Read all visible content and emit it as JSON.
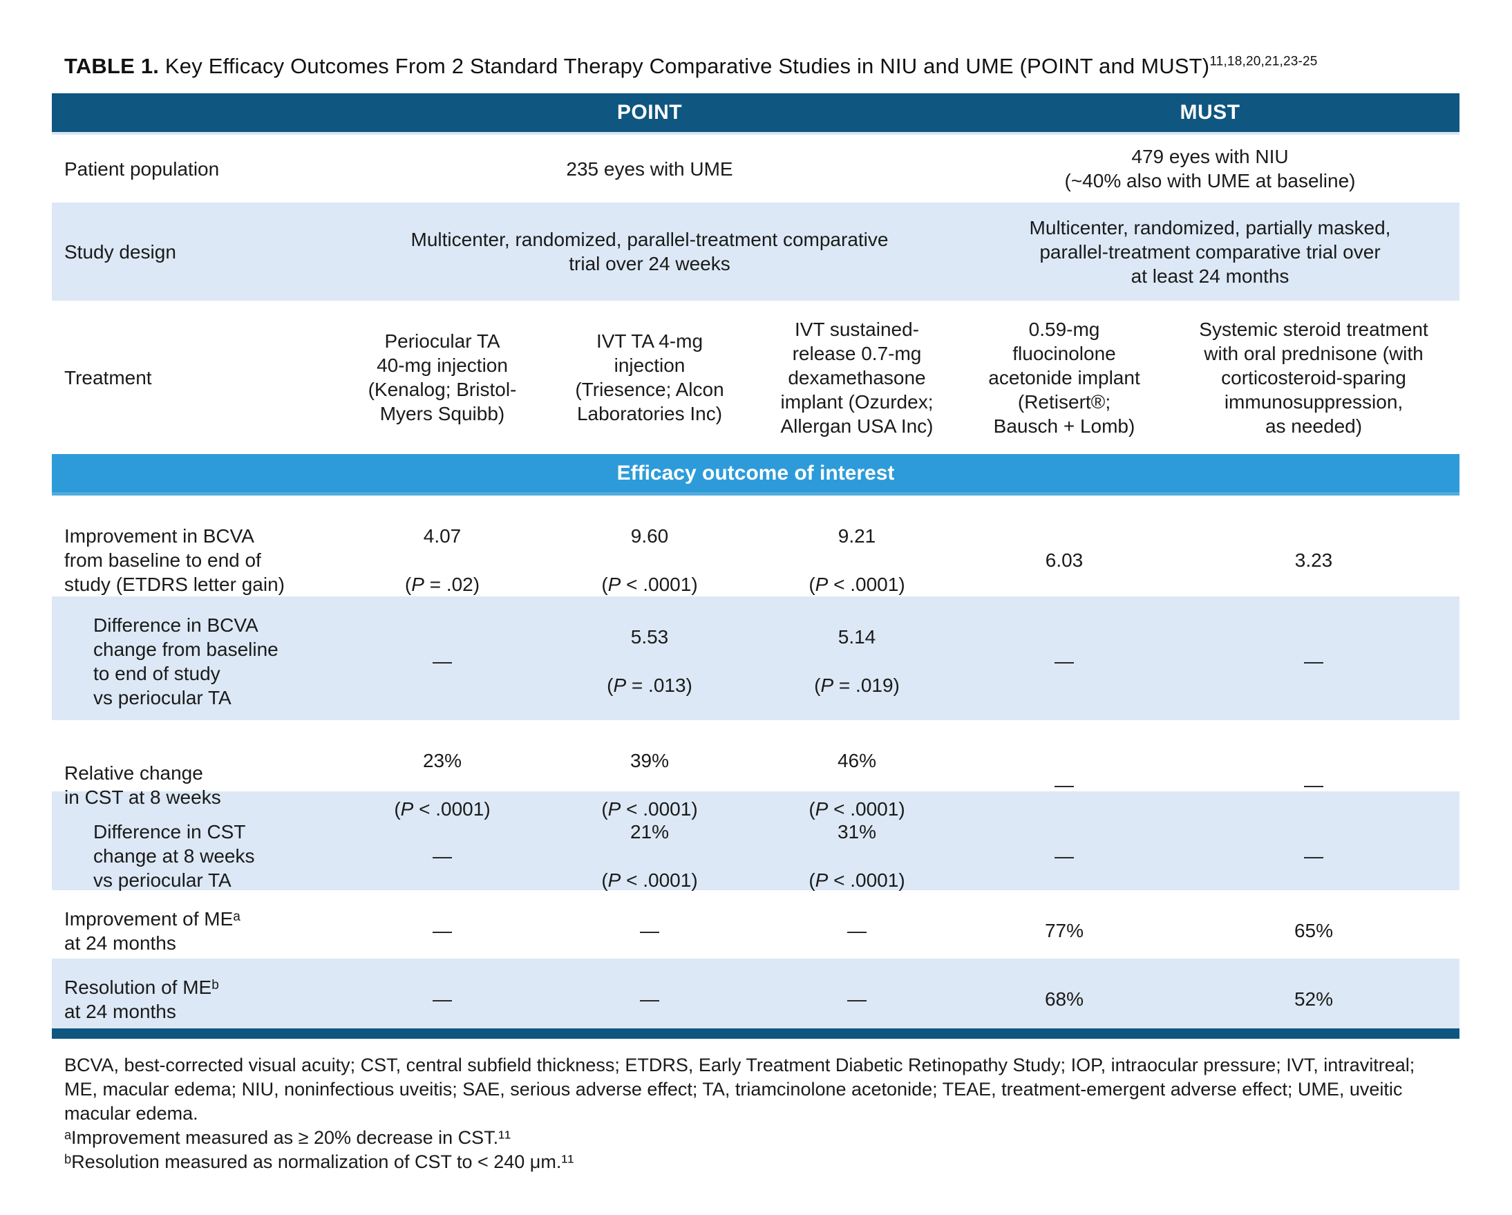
{
  "colors": {
    "header_bar": "#0F5680",
    "section_band": "#2D9BD9",
    "row_alt": "#DCE8F5",
    "text": "#1A1A1A"
  },
  "title": {
    "label": "TABLE 1.",
    "text": " Key Efficacy Outcomes From 2 Standard Therapy Comparative Studies in NIU and UME (POINT and MUST)",
    "citation": "11,18,20,21,23-25"
  },
  "columns": {
    "point": "POINT",
    "must": "MUST"
  },
  "rows": {
    "patient": {
      "label": "Patient population",
      "point": "235 eyes with UME",
      "must": "479 eyes with NIU\n(~40% also with UME at baseline)"
    },
    "design": {
      "label": "Study design",
      "point": "Multicenter, randomized, parallel-treatment comparative\ntrial over 24 weeks",
      "must": "Multicenter, randomized, partially masked,\nparallel-treatment comparative trial over\nat least 24 months"
    },
    "treatment": {
      "label": "Treatment",
      "arms": [
        "Periocular TA\n40-mg injection\n(Kenalog; Bristol-\nMyers Squibb)",
        "IVT TA 4-mg\ninjection\n(Triesence; Alcon\nLaboratories Inc)",
        "IVT sustained-\nrelease 0.7-mg\ndexamethasone\nimplant (Ozurdex;\nAllergan USA Inc)",
        "0.59-mg\nfluocinolone\nacetonide implant\n(Retisert®;\nBausch + Lomb)",
        "Systemic steroid treatment\nwith oral prednisone (with\ncorticosteroid-sparing\nimmunosuppression,\nas needed)"
      ]
    }
  },
  "section_band": "Efficacy outcome of interest",
  "outcomes": [
    {
      "label": "Improvement in BCVA\nfrom baseline to end of\nstudy (ETDRS letter gain)",
      "cells": [
        {
          "v": "4.07",
          "p": "(P = .02)"
        },
        {
          "v": "9.60",
          "p": "(P < .0001)"
        },
        {
          "v": "9.21",
          "p": "(P < .0001)"
        },
        {
          "v": "6.03"
        },
        {
          "v": "3.23"
        }
      ]
    },
    {
      "label": "Difference in BCVA\nchange from baseline\nto end of study\nvs periocular TA",
      "cells": [
        {
          "v": "—"
        },
        {
          "v": "5.53",
          "p": "(P = .013)"
        },
        {
          "v": "5.14",
          "p": "(P = .019)"
        },
        {
          "v": "—"
        },
        {
          "v": "—"
        }
      ]
    },
    {
      "label": "Relative change\nin CST at 8 weeks",
      "cells": [
        {
          "v": "23%",
          "p": "(P < .0001)"
        },
        {
          "v": "39%",
          "p": "(P < .0001)"
        },
        {
          "v": "46%",
          "p": "(P < .0001)"
        },
        {
          "v": "—"
        },
        {
          "v": "—"
        }
      ]
    },
    {
      "label": "Difference in CST\nchange at 8 weeks\nvs periocular TA",
      "cells": [
        {
          "v": "—"
        },
        {
          "v": "21%",
          "p": "(P < .0001)"
        },
        {
          "v": "31%",
          "p": "(P < .0001)"
        },
        {
          "v": "—"
        },
        {
          "v": "—"
        }
      ]
    },
    {
      "label": "Improvement of MEᵃ\nat 24 months",
      "cells": [
        {
          "v": "—"
        },
        {
          "v": "—"
        },
        {
          "v": "—"
        },
        {
          "v": "77%"
        },
        {
          "v": "65%"
        }
      ]
    },
    {
      "label": "Resolution of MEᵇ\nat 24 months",
      "cells": [
        {
          "v": "—"
        },
        {
          "v": "—"
        },
        {
          "v": "—"
        },
        {
          "v": "68%"
        },
        {
          "v": "52%"
        }
      ]
    }
  ],
  "footnotes": {
    "abbreviations": "BCVA, best-corrected visual acuity; CST, central subfield thickness; ETDRS, Early Treatment Diabetic Retinopathy Study; IOP, intraocular pressure; IVT, intravitreal; ME, macular edema; NIU, noninfectious uveitis; SAE, serious adverse effect; TA, triamcinolone acetonide; TEAE, treatment-emergent adverse effect; UME, uveitic macular edema.",
    "a": "ᵃImprovement measured as ≥ 20% decrease in CST.¹¹",
    "b": "ᵇResolution measured as normalization of CST to < 240 μm.¹¹"
  }
}
